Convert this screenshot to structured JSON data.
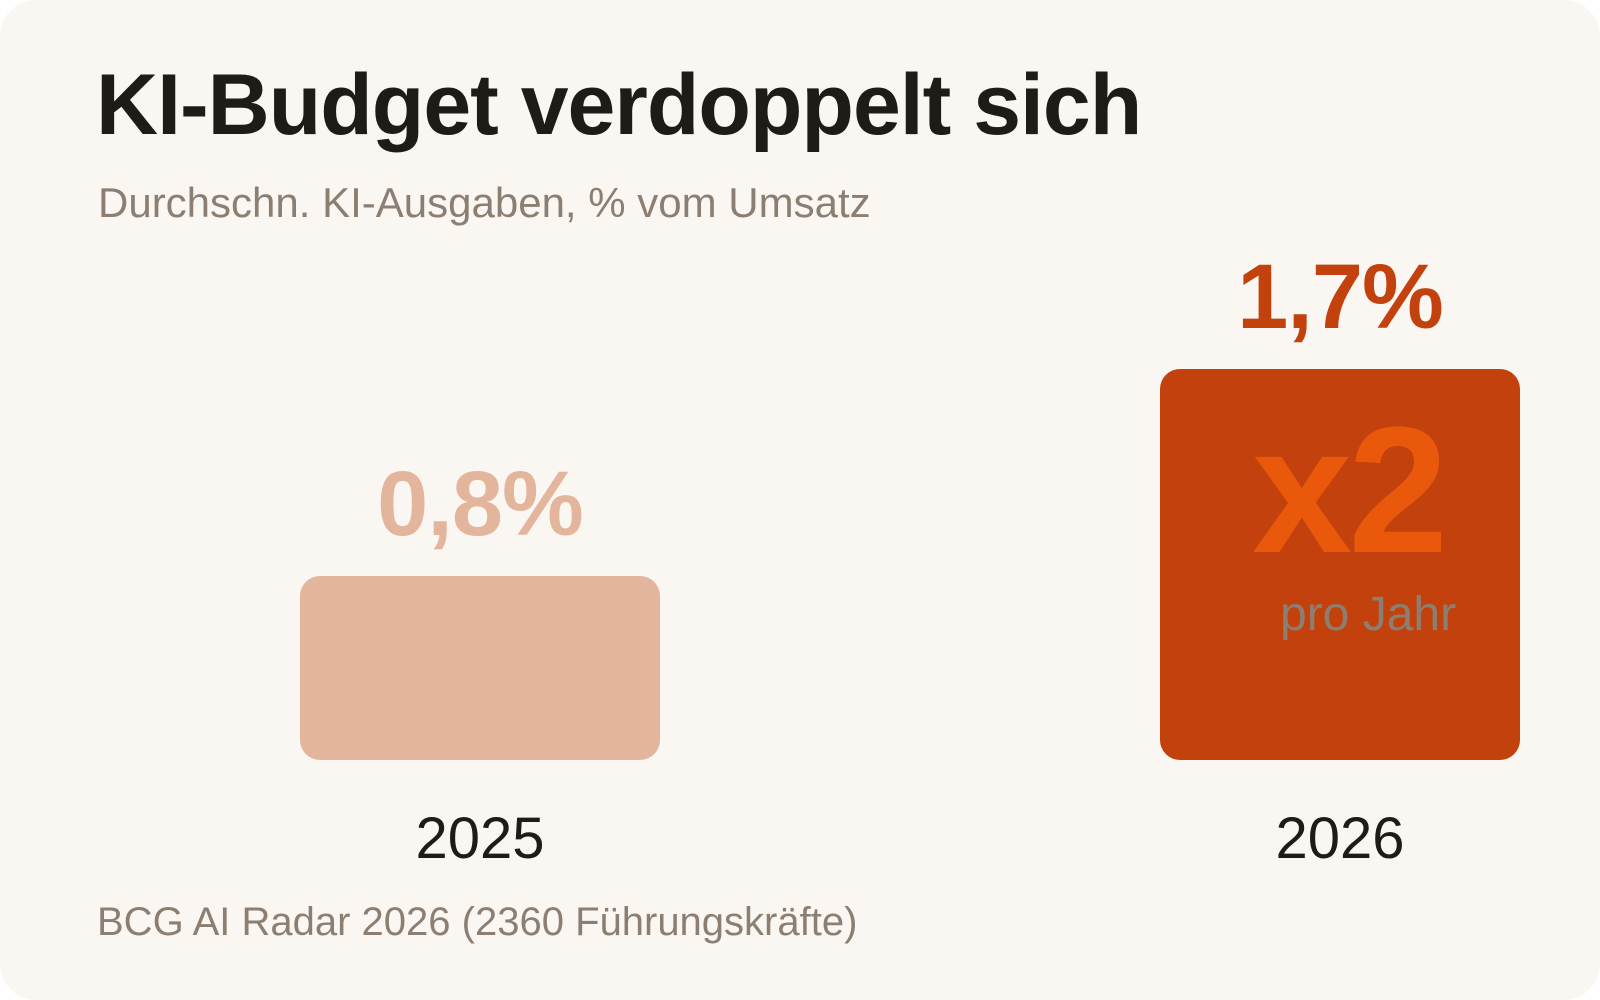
{
  "header": {
    "title": "KI-Budget verdoppelt sich",
    "subtitle": "Durchschn. KI-Ausgaben, % vom Umsatz"
  },
  "source": "BCG AI Radar 2026 (2360 Führungskräfte)",
  "annotation": {
    "multiplier": "x2",
    "period": "pro Jahr"
  },
  "colors": {
    "bar_2025": "#e4b59d",
    "bar_2026": "#c2410c",
    "multiplier": "#ea580c",
    "per_year": "#8c7f72"
  },
  "chart_data": {
    "type": "bar",
    "title": "KI-Budget verdoppelt sich",
    "subtitle": "Durchschn. KI-Ausgaben, % vom Umsatz",
    "categories": [
      "2025",
      "2026"
    ],
    "values": [
      0.8,
      1.7
    ],
    "data_labels": [
      "0,8%",
      "1,7%"
    ],
    "unit": "%",
    "grid": false,
    "legend": "none"
  }
}
